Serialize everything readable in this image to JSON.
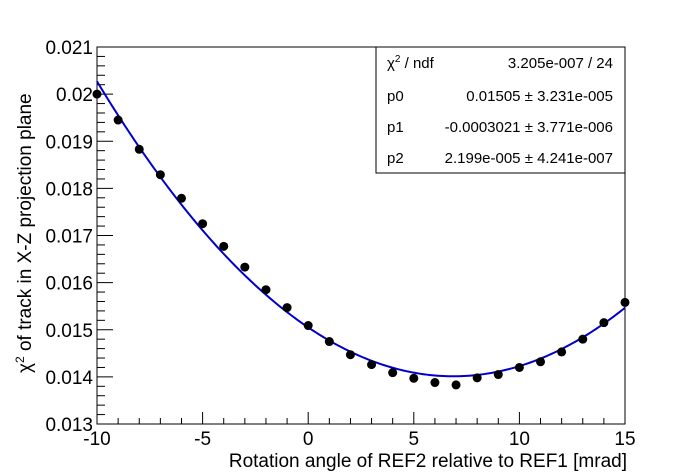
{
  "chart_data": {
    "type": "scatter",
    "xlabel": "Rotation angle of REF2 relative to REF1 [mrad]",
    "ylabel_prefix": "χ",
    "ylabel_sup": "2",
    "ylabel_suffix": " of track in X-Z projection plane",
    "xlim": [
      -10,
      15
    ],
    "ylim": [
      0.013,
      0.021
    ],
    "x_ticks": [
      -10,
      -5,
      0,
      5,
      10,
      15
    ],
    "x_tick_labels": [
      "-10",
      "-5",
      "0",
      "5",
      "10",
      "15"
    ],
    "y_ticks": [
      0.013,
      0.014,
      0.015,
      0.016,
      0.017,
      0.018,
      0.019,
      0.02,
      0.021
    ],
    "y_tick_labels": [
      "0.013",
      "0.014",
      "0.015",
      "0.016",
      "0.017",
      "0.018",
      "0.019",
      "0.02",
      "0.021"
    ],
    "points": {
      "x": [
        -10,
        -9,
        -8,
        -7,
        -6,
        -5,
        -4,
        -3,
        -2,
        -1,
        0,
        1,
        2,
        3,
        4,
        5,
        6,
        7,
        8,
        9,
        10,
        11,
        12,
        13,
        14,
        15
      ],
      "y": [
        0.02,
        0.01945,
        0.01883,
        0.01829,
        0.01779,
        0.01725,
        0.01677,
        0.01633,
        0.01585,
        0.01547,
        0.01509,
        0.01475,
        0.01447,
        0.01426,
        0.01409,
        0.01397,
        0.01388,
        0.01383,
        0.01398,
        0.01405,
        0.0142,
        0.01432,
        0.01453,
        0.0148,
        0.01515,
        0.01558
      ]
    },
    "fit": {
      "name": "pol2",
      "color": "#0000cc",
      "p0": 0.01505,
      "p1": -0.0003021,
      "p2": 2.199e-05
    },
    "marker_color": "#000000",
    "legend_position": "top-right",
    "stats": {
      "rows": [
        {
          "label_main": "χ",
          "label_sup": "2",
          "label_rest": " / ndf",
          "value": "3.205e-007 / 24"
        },
        {
          "label_main": "p0",
          "label_sup": "",
          "label_rest": "",
          "value": "0.01505 ± 3.231e-005"
        },
        {
          "label_main": "p1",
          "label_sup": "",
          "label_rest": "",
          "value": "-0.0003021 ± 3.771e-006"
        },
        {
          "label_main": "p2",
          "label_sup": "",
          "label_rest": "",
          "value": "2.199e-005 ± 4.241e-007"
        }
      ]
    }
  }
}
